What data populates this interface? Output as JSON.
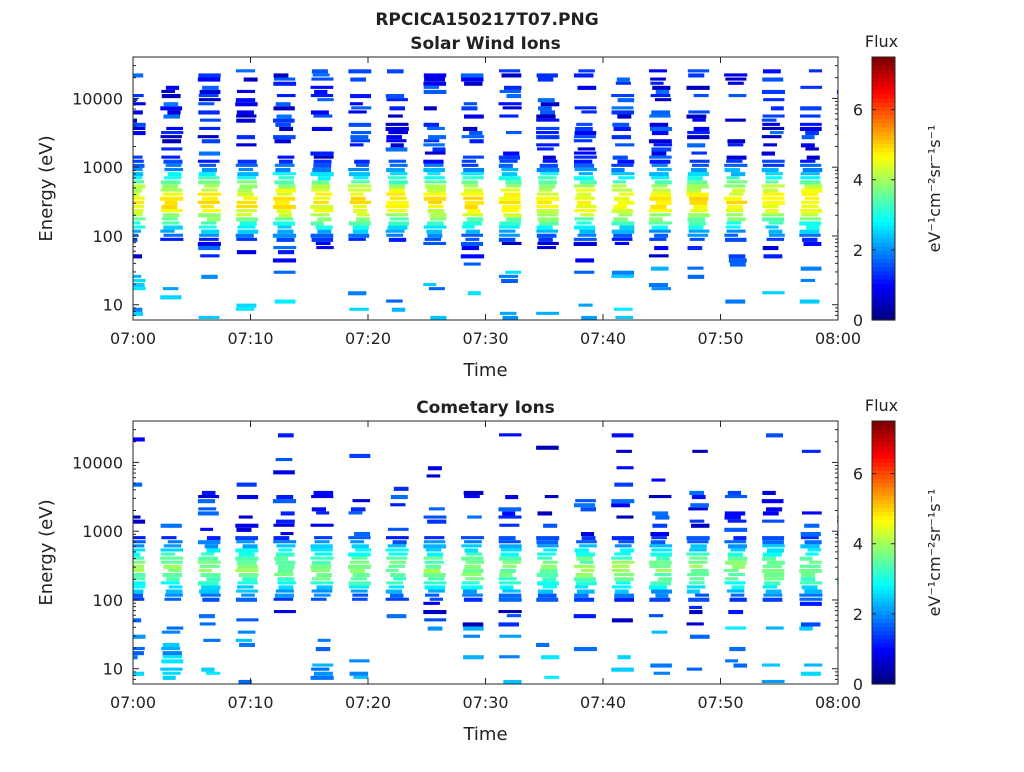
{
  "figure": {
    "title": "RPCICA150217T07.PNG"
  },
  "chart_data": [
    {
      "type": "heatmap",
      "title": "Solar Wind Ions",
      "xlabel": "Time",
      "ylabel": "Energy (eV)",
      "x_range": [
        "07:00",
        "08:00"
      ],
      "x_ticks": [
        "07:00",
        "07:10",
        "07:20",
        "07:30",
        "07:40",
        "07:50",
        "08:00"
      ],
      "y_scale": "log",
      "y_range": [
        6,
        40000
      ],
      "y_ticks": [
        10,
        100,
        1000,
        10000
      ],
      "y_ticklabels": [
        "10",
        "100",
        "1000",
        "10000"
      ],
      "colorbar": {
        "label": "Flux",
        "unit": "eV⁻¹cm⁻²sr⁻¹s⁻¹",
        "range": [
          0,
          7.5
        ],
        "ticks": [
          0,
          2,
          4,
          6
        ],
        "colormap": "jet"
      },
      "scan_period_min": 3.2,
      "peak_energy_range_eV": [
        150,
        800
      ],
      "peak_flux": 4.8
    },
    {
      "type": "heatmap",
      "title": "Cometary Ions",
      "xlabel": "Time",
      "ylabel": "Energy (eV)",
      "x_range": [
        "07:00",
        "08:00"
      ],
      "x_ticks": [
        "07:00",
        "07:10",
        "07:20",
        "07:30",
        "07:40",
        "07:50",
        "08:00"
      ],
      "y_scale": "log",
      "y_range": [
        6,
        40000
      ],
      "y_ticks": [
        10,
        100,
        1000,
        10000
      ],
      "y_ticklabels": [
        "10",
        "100",
        "1000",
        "10000"
      ],
      "colorbar": {
        "label": "Flux",
        "unit": "eV⁻¹cm⁻²sr⁻¹s⁻¹",
        "range": [
          0,
          7.5
        ],
        "ticks": [
          0,
          2,
          4,
          6
        ],
        "colormap": "jet"
      },
      "scan_period_min": 3.2,
      "peak_energy_range_eV": [
        150,
        700
      ],
      "peak_flux": 3.8
    }
  ]
}
